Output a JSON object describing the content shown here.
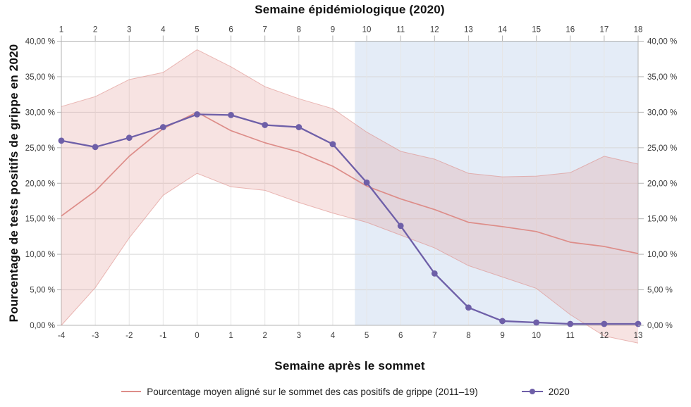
{
  "chart": {
    "title_top": "Semaine épidémiologique (2020)",
    "xlabel_bottom": "Semaine après le sommet",
    "ylabel_left": "Pourcentage de tests positifs de grippe en 2020",
    "legend": [
      {
        "label": "Pourcentage moyen aligné sur le sommet des cas positifs de grippe (2011–19)",
        "color": "#dd8d89",
        "swatch": "line"
      },
      {
        "label": "2020",
        "color": "#6e5fa8",
        "swatch": "line-dot"
      }
    ],
    "colors": {
      "series_2020": "#6e5fa8",
      "mean_line": "#dd8d89",
      "band_fill": "rgba(228,154,150,0.28)",
      "band_edge": "rgba(221,141,137,0.6)",
      "highlight_fill": "#e4ecf7",
      "grid_h": "#d8d8d8",
      "grid_v": "#e6e6e6",
      "axis": "#b3b3b3",
      "tick_text": "#3d3d3d"
    }
  },
  "chart_data": {
    "type": "line",
    "x_bottom_weeks_after_peak": [
      -4,
      -3,
      -2,
      -1,
      0,
      1,
      2,
      3,
      4,
      5,
      6,
      7,
      8,
      9,
      10,
      11,
      12,
      13
    ],
    "x_top_epi_week_2020": [
      1,
      2,
      3,
      4,
      5,
      6,
      7,
      8,
      9,
      10,
      11,
      12,
      13,
      14,
      15,
      16,
      17,
      18
    ],
    "ylim": [
      0,
      40
    ],
    "y_tick_step": 5,
    "y_tick_labels": [
      "0,00 %",
      "5,00 %",
      "10,00 %",
      "15,00 %",
      "20,00 %",
      "25,00 %",
      "30,00 %",
      "35,00 %",
      "40,00 %"
    ],
    "grid": "on",
    "legend_position": "bottom",
    "series": [
      {
        "name": "Pourcentage moyen aligné sur le sommet des cas positifs de grippe (2011–19)",
        "values": [
          15.4,
          18.9,
          23.8,
          27.7,
          30.0,
          27.4,
          25.7,
          24.4,
          22.4,
          19.6,
          17.8,
          16.3,
          14.5,
          13.9,
          13.2,
          11.7,
          11.1,
          10.1
        ]
      },
      {
        "name": "2020",
        "values": [
          26.0,
          25.1,
          26.4,
          27.9,
          29.7,
          29.6,
          28.2,
          27.9,
          25.5,
          20.1,
          14.0,
          7.3,
          2.5,
          0.6,
          0.4,
          0.2,
          0.2,
          0.2
        ]
      }
    ],
    "confidence_band": {
      "series": "Pourcentage moyen aligné sur le sommet des cas positifs de grippe (2011–19)",
      "upper": [
        30.8,
        32.2,
        34.6,
        35.6,
        38.8,
        36.4,
        33.6,
        31.9,
        30.5,
        27.2,
        24.5,
        23.4,
        21.4,
        20.9,
        21.0,
        21.5,
        23.8,
        22.7
      ],
      "lower": [
        0.0,
        5.3,
        12.3,
        18.3,
        21.4,
        19.5,
        19.0,
        17.3,
        15.8,
        14.5,
        12.7,
        10.9,
        8.4,
        6.8,
        5.2,
        1.5,
        -1.5,
        -2.5
      ]
    },
    "highlight_region": {
      "from_week_after_peak": 4.65,
      "to_week_after_peak": 13
    }
  }
}
